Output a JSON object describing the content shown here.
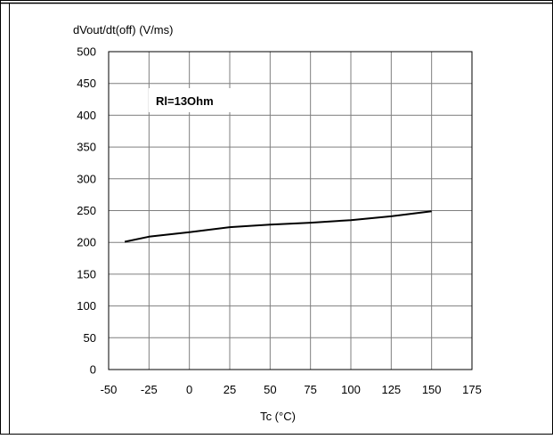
{
  "chart_data": {
    "type": "line",
    "title": "",
    "ylabel": "dVout/dt(off) (V/ms)",
    "xlabel": "Tc (°C)",
    "xlim": [
      -50,
      175
    ],
    "ylim": [
      0,
      500
    ],
    "x_ticks": [
      "-50",
      "-25",
      "0",
      "25",
      "50",
      "75",
      "100",
      "125",
      "150",
      "175"
    ],
    "y_ticks": [
      "0",
      "50",
      "100",
      "150",
      "200",
      "250",
      "300",
      "350",
      "400",
      "450",
      "500"
    ],
    "grid": true,
    "annotation": "Rl=13Ohm",
    "series": [
      {
        "x": [
          -40,
          -25,
          0,
          25,
          50,
          75,
          100,
          125,
          150
        ],
        "y": [
          201,
          209,
          216,
          224,
          228,
          231,
          235,
          241,
          249
        ],
        "color": "#000000"
      }
    ]
  }
}
